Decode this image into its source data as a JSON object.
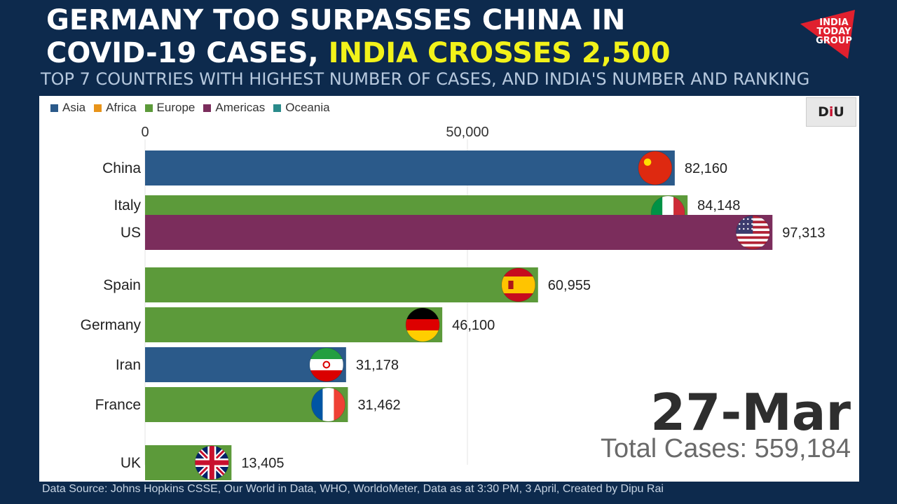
{
  "headline": {
    "line1": "GERMANY TOO SURPASSES CHINA IN",
    "line2_white": "COVID-19 CASES, ",
    "line2_highlight": "INDIA CROSSES 2,500"
  },
  "subtitle": "TOP 7 COUNTRIES WITH HIGHEST NUMBER OF CASES, AND INDIA'S NUMBER AND RANKING",
  "logo": {
    "line1": "INDIA",
    "line2": "TODAY",
    "line3": "GROUP"
  },
  "watermark": {
    "text_a": "D",
    "text_b": "i",
    "text_c": "U"
  },
  "legend": [
    {
      "label": "Asia",
      "color": "#2b5a8a"
    },
    {
      "label": "Africa",
      "color": "#e8941a"
    },
    {
      "label": "Europe",
      "color": "#5c9a3a"
    },
    {
      "label": "Americas",
      "color": "#7b2d5c"
    },
    {
      "label": "Oceania",
      "color": "#2a8b8b"
    }
  ],
  "date_label": "27-Mar",
  "total_cases": "Total Cases: 559,184",
  "source": "Data Source: Johns Hopkins CSSE, Our World in Data, WHO, WorldoMeter, Data as at 3:30 PM, 3 April, Created by Dipu Rai",
  "chart_data": {
    "type": "bar",
    "orientation": "horizontal",
    "tick_values": [
      0,
      50000
    ],
    "tick_labels": [
      "0",
      "50,000"
    ],
    "xlim": [
      0,
      100000
    ],
    "gridlines": true,
    "categories": [
      "China",
      "Italy",
      "US",
      "Spain",
      "Germany",
      "Iran",
      "France",
      "UK"
    ],
    "values": [
      82160,
      84148,
      97313,
      60955,
      46100,
      31178,
      31462,
      13405
    ],
    "value_labels": [
      "82,160",
      "84,148",
      "97,313",
      "60,955",
      "46,100",
      "31,178",
      "31,462",
      "13,405"
    ],
    "regions": [
      "Asia",
      "Europe",
      "Americas",
      "Europe",
      "Europe",
      "Asia",
      "Europe",
      "Europe"
    ],
    "flags": [
      "china-flag",
      "italy-flag",
      "us-flag",
      "spain-flag",
      "germany-flag",
      "iran-flag",
      "france-flag",
      "uk-flag"
    ]
  }
}
